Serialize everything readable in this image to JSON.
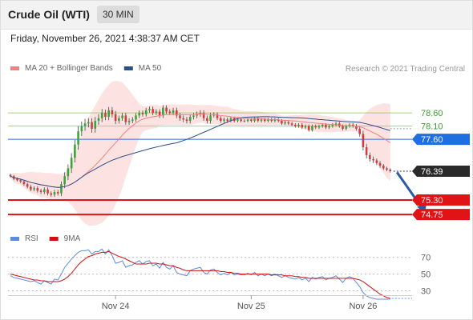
{
  "header": {
    "title": "Crude Oil (WTI)",
    "timeframe": "30 MIN"
  },
  "date_line": "Friday, November 26, 2021 4:38:37 AM CET",
  "copyright": "Research © 2021 Trading Central",
  "colors": {
    "up": "#39a539",
    "down": "#d23c3c",
    "ma20": "#f08080",
    "ma50": "#2a4f8a",
    "band_fill": "#fde2e2",
    "resistance": "#a6cf73",
    "pivot": "#2f6bd8",
    "support": "#e01414",
    "rsi": "#5b8be0",
    "rsi_ma": "#d01010",
    "arrow": "#2a5aa8"
  },
  "chart_data": [
    {
      "type": "candlestick",
      "legend": [
        {
          "label": "MA 20 + Bollinger Bands",
          "color": "#f08080"
        },
        {
          "label": "MA 50",
          "color": "#2a4f8a"
        }
      ],
      "ylim": [
        74.45,
        79.15
      ],
      "x_ticks": [
        {
          "label": "Nov 24",
          "index": 31
        },
        {
          "label": "Nov 25",
          "index": 71
        },
        {
          "label": "Nov 26",
          "index": 104
        }
      ],
      "price_levels": [
        {
          "label": "78.60",
          "value": 78.6,
          "kind": "resistance"
        },
        {
          "label": "78.10",
          "value": 78.1,
          "kind": "resistance"
        },
        {
          "label": "77.60",
          "value": 77.6,
          "kind": "pivot"
        },
        {
          "label": "76.39",
          "value": 76.39,
          "kind": "last"
        },
        {
          "label": "75.30",
          "value": 75.3,
          "kind": "support"
        },
        {
          "label": "74.75",
          "value": 74.75,
          "kind": "support"
        }
      ],
      "forecast_arrow": {
        "from_index": 114,
        "from_value": 76.35,
        "to_index": 122,
        "to_value": 74.8
      },
      "closes": [
        76.2,
        76.1,
        76.05,
        76.0,
        75.9,
        75.8,
        75.7,
        75.75,
        75.65,
        75.6,
        75.7,
        75.55,
        75.5,
        75.6,
        75.55,
        75.9,
        76.2,
        76.5,
        76.9,
        77.4,
        77.9,
        78.1,
        78.2,
        78.25,
        78.0,
        78.3,
        78.4,
        78.6,
        78.45,
        78.7,
        78.55,
        78.3,
        78.4,
        78.5,
        78.25,
        78.3,
        78.35,
        78.5,
        78.6,
        78.55,
        78.7,
        78.75,
        78.6,
        78.65,
        78.5,
        78.8,
        78.65,
        78.6,
        78.7,
        78.5,
        78.4,
        78.35,
        78.3,
        78.45,
        78.5,
        78.55,
        78.6,
        78.4,
        78.3,
        78.5,
        78.55,
        78.4,
        78.3,
        78.35,
        78.3,
        78.4,
        78.3,
        78.35,
        78.3,
        78.3,
        78.35,
        78.3,
        78.4,
        78.3,
        78.35,
        78.3,
        78.35,
        78.3,
        78.35,
        78.3,
        78.2,
        78.25,
        78.2,
        78.15,
        78.1,
        78.15,
        78.05,
        78.1,
        77.95,
        78.1,
        78.05,
        78.1,
        78.15,
        78.05,
        78.1,
        78.15,
        78.2,
        78.1,
        78.0,
        78.1,
        78.15,
        78.1,
        78.0,
        77.8,
        77.3,
        77.0,
        76.85,
        76.8,
        76.7,
        76.6,
        76.5,
        76.45,
        76.39
      ],
      "volatility": [
        0.1,
        0.1,
        0.1,
        0.12,
        0.12,
        0.12,
        0.14,
        0.14,
        0.14,
        0.15,
        0.15,
        0.15,
        0.15,
        0.16,
        0.16,
        0.2,
        0.3,
        0.3,
        0.35,
        0.35,
        0.4,
        0.35,
        0.35,
        0.3,
        0.3,
        0.3,
        0.3,
        0.3,
        0.25,
        0.25,
        0.25,
        0.25,
        0.2,
        0.2,
        0.2,
        0.2,
        0.18,
        0.18,
        0.18,
        0.18,
        0.18,
        0.18,
        0.18,
        0.18,
        0.18,
        0.18,
        0.18,
        0.18,
        0.18,
        0.2,
        0.2,
        0.2,
        0.2,
        0.2,
        0.2,
        0.2,
        0.2,
        0.2,
        0.2,
        0.2,
        0.15,
        0.15,
        0.15,
        0.15,
        0.15,
        0.12,
        0.12,
        0.12,
        0.12,
        0.12,
        0.12,
        0.12,
        0.12,
        0.12,
        0.12,
        0.12,
        0.12,
        0.12,
        0.12,
        0.12,
        0.12,
        0.12,
        0.12,
        0.12,
        0.12,
        0.12,
        0.12,
        0.12,
        0.12,
        0.12,
        0.12,
        0.12,
        0.12,
        0.12,
        0.12,
        0.12,
        0.12,
        0.12,
        0.12,
        0.12,
        0.12,
        0.12,
        0.15,
        0.2,
        0.25,
        0.25,
        0.2,
        0.2,
        0.15,
        0.15,
        0.12,
        0.12,
        0.1
      ]
    },
    {
      "type": "line",
      "legend": [
        {
          "label": "RSI",
          "color": "#5b8be0"
        },
        {
          "label": "9MA",
          "color": "#d01010"
        }
      ],
      "ylim": [
        20,
        85
      ],
      "y_ticks": [
        70,
        50,
        30
      ],
      "series": [
        {
          "name": "RSI",
          "values": [
            48,
            46,
            45,
            44,
            43,
            42,
            41,
            42,
            40,
            38,
            42,
            40,
            38,
            44,
            43,
            50,
            58,
            63,
            68,
            72,
            76,
            78,
            78,
            79,
            74,
            77,
            77,
            80,
            74,
            79,
            72,
            63,
            64,
            66,
            58,
            60,
            61,
            64,
            66,
            62,
            65,
            66,
            60,
            62,
            57,
            64,
            58,
            56,
            60,
            52,
            50,
            49,
            48,
            54,
            56,
            57,
            58,
            52,
            50,
            55,
            56,
            52,
            49,
            51,
            49,
            52,
            49,
            50,
            49,
            49,
            51,
            49,
            52,
            48,
            50,
            48,
            50,
            48,
            50,
            48,
            46,
            48,
            46,
            45,
            44,
            46,
            43,
            45,
            41,
            46,
            44,
            46,
            47,
            43,
            45,
            46,
            48,
            44,
            40,
            45,
            47,
            45,
            40,
            35,
            28,
            24,
            22,
            21,
            20,
            20,
            20,
            20,
            20
          ]
        },
        {
          "name": "9MA",
          "values": [
            50,
            49,
            48,
            47,
            46,
            45,
            44,
            43,
            43,
            42,
            42,
            41,
            41,
            41,
            41,
            42,
            44,
            47,
            51,
            56,
            61,
            65,
            68,
            71,
            72,
            74,
            75,
            76,
            76,
            77,
            75,
            73,
            71,
            70,
            68,
            66,
            64,
            62,
            62,
            62,
            62,
            63,
            63,
            63,
            62,
            62,
            61,
            60,
            60,
            58,
            57,
            55,
            54,
            54,
            54,
            54,
            54,
            54,
            54,
            54,
            54,
            54,
            53,
            53,
            52,
            52,
            51,
            51,
            50,
            50,
            50,
            50,
            50,
            50,
            50,
            50,
            50,
            49,
            49,
            49,
            49,
            48,
            48,
            48,
            47,
            47,
            46,
            46,
            45,
            45,
            45,
            45,
            45,
            45,
            45,
            45,
            45,
            45,
            45,
            45,
            45,
            45,
            44,
            43,
            41,
            38,
            35,
            32,
            29,
            26,
            24,
            22,
            21
          ]
        }
      ]
    }
  ]
}
